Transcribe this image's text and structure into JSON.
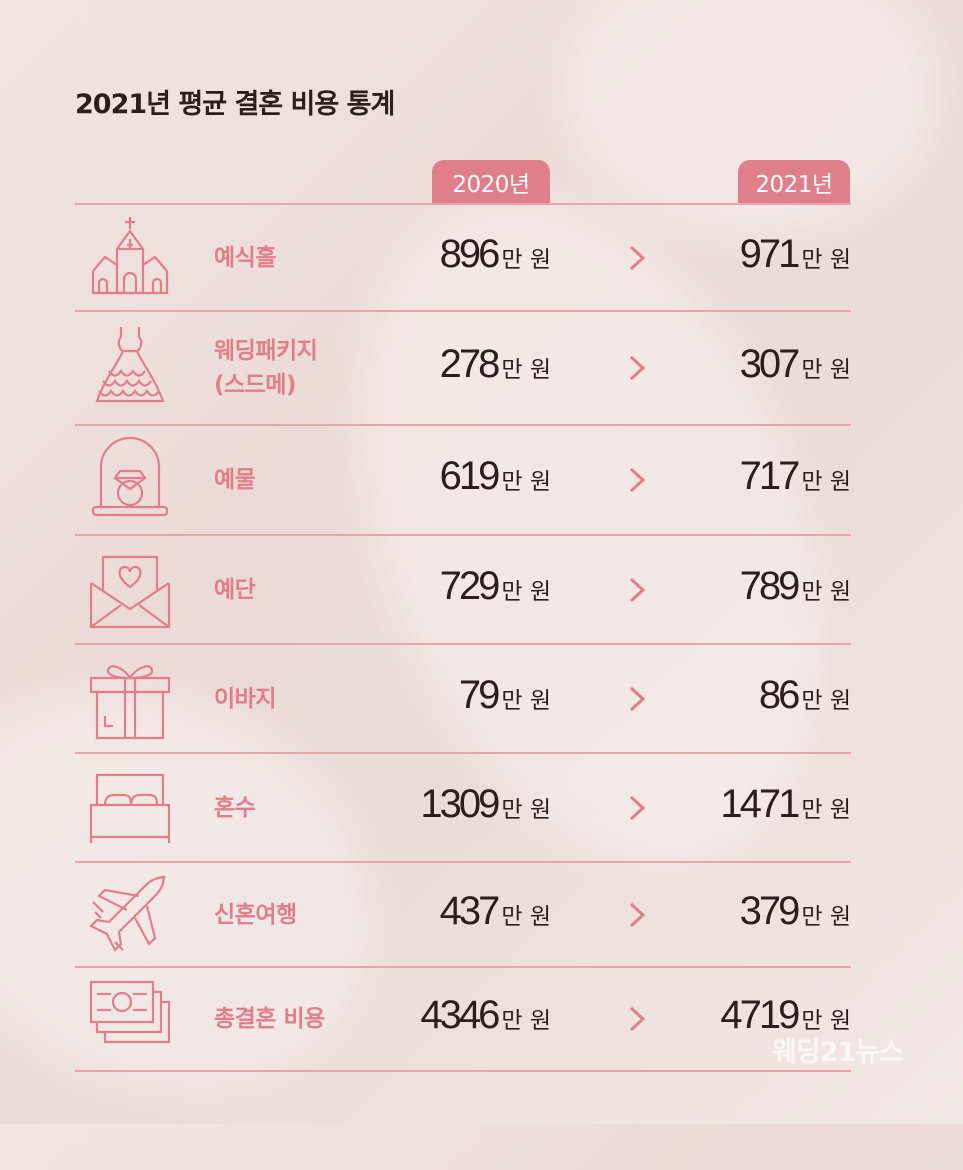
{
  "title": "2021년 평균 결혼 비용 통계",
  "columns": [
    "2020년",
    "2021년"
  ],
  "accent_color": "#e07f8a",
  "rows": [
    {
      "label": "예식홀",
      "icon": "wedding-hall-icon",
      "v2020": "896",
      "v2021": "971",
      "unit": "만 원"
    },
    {
      "label": "웨딩패키지\n(스드메)",
      "icon": "wedding-dress-icon",
      "v2020": "278",
      "v2021": "307",
      "unit": "만 원"
    },
    {
      "label": "예물",
      "icon": "ring-box-icon",
      "v2020": "619",
      "v2021": "717",
      "unit": "만 원"
    },
    {
      "label": "예단",
      "icon": "heart-envelope-icon",
      "v2020": "729",
      "v2021": "789",
      "unit": "만 원"
    },
    {
      "label": "이바지",
      "icon": "gift-box-icon",
      "v2020": "79",
      "v2021": "86",
      "unit": "만 원"
    },
    {
      "label": "혼수",
      "icon": "bed-icon",
      "v2020": "1309",
      "v2021": "1471",
      "unit": "만 원"
    },
    {
      "label": "신혼여행",
      "icon": "airplane-icon",
      "v2020": "437",
      "v2021": "379",
      "unit": "만 원"
    },
    {
      "label": "총결혼 비용",
      "icon": "cash-stack-icon",
      "v2020": "4346",
      "v2021": "4719",
      "unit": "만 원"
    }
  ],
  "chart_data": {
    "type": "table",
    "title": "2021년 평균 결혼 비용 통계",
    "categories": [
      "예식홀",
      "웨딩패키지(스드메)",
      "예물",
      "예단",
      "이바지",
      "혼수",
      "신혼여행",
      "총결혼 비용"
    ],
    "series": [
      {
        "name": "2020년",
        "values": [
          896,
          278,
          619,
          729,
          79,
          1309,
          437,
          4346
        ]
      },
      {
        "name": "2021년",
        "values": [
          971,
          307,
          717,
          789,
          86,
          1471,
          379,
          4719
        ]
      }
    ],
    "unit": "만 원"
  },
  "watermark": "웨딩21뉴스"
}
